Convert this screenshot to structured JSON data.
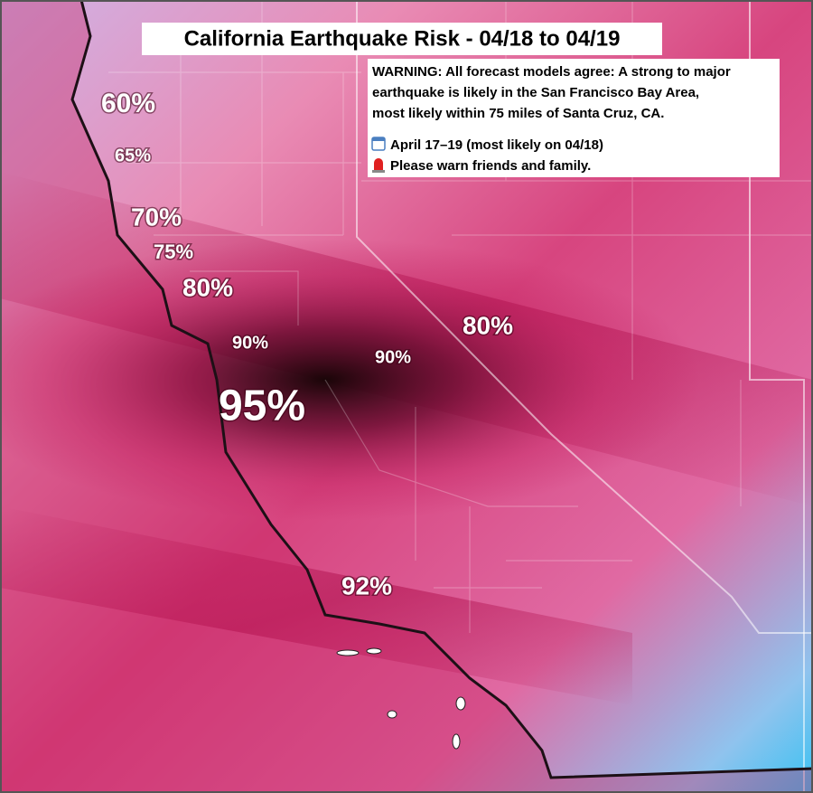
{
  "title": "California Earthquake Risk - 04/18 to 04/19",
  "warning": {
    "lines": [
      "WARNING: All forecast models agree: A strong to major",
      "earthquake is likely in the San Francisco Bay Area,",
      "most likely within 75 miles of Santa Cruz, CA."
    ],
    "items": [
      "April 17–19 (most likely on 04/18)",
      "Please warn friends and family."
    ]
  },
  "labels": [
    "60%",
    "65%",
    "70%",
    "75%",
    "80%",
    "90%",
    "90%",
    "80%",
    "95%",
    "92%"
  ]
}
